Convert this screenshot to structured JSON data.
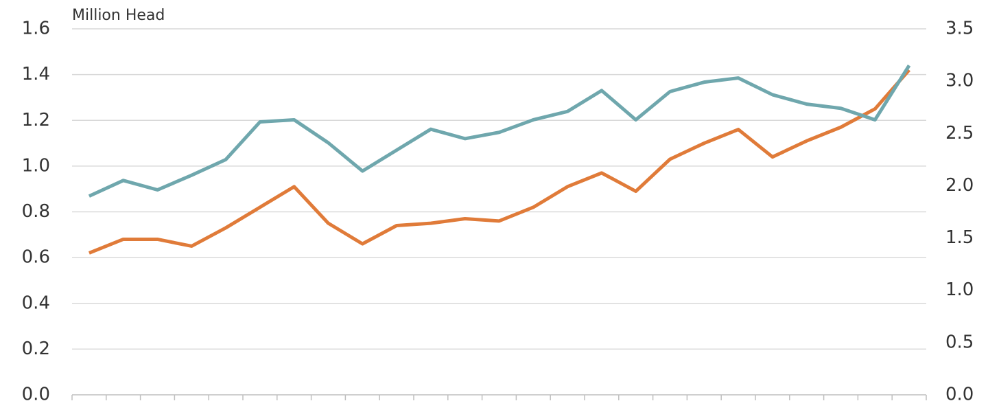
{
  "chart_data": {
    "type": "line",
    "y_label": "Million Head",
    "categories": [
      null,
      null,
      null,
      null,
      null,
      null,
      null,
      null,
      null,
      null,
      null,
      null,
      null,
      null,
      null,
      null,
      null,
      null,
      null,
      null,
      null,
      null,
      null,
      null,
      null
    ],
    "series": [
      {
        "color": "#e07b39",
        "values": [
          0.62,
          0.68,
          0.68,
          0.65,
          0.73,
          0.82,
          0.91,
          0.75,
          0.66,
          0.74,
          0.75,
          0.77,
          0.76,
          0.82,
          0.91,
          0.97,
          0.89,
          1.03,
          1.1,
          1.16,
          1.04,
          1.11,
          1.17,
          1.25,
          1.42
        ]
      },
      {
        "color": "#6fa7ad",
        "axis": "y2",
        "values": [
          1.9,
          2.05,
          1.96,
          2.1,
          2.25,
          2.61,
          2.63,
          2.41,
          2.14,
          2.34,
          2.54,
          2.45,
          2.51,
          2.63,
          2.71,
          2.91,
          2.63,
          2.9,
          2.99,
          3.03,
          2.87,
          2.78,
          2.74,
          2.63,
          3.15
        ]
      }
    ],
    "ylim": [
      0,
      1.6
    ],
    "yticks": [
      {
        "value": 0,
        "label": "0.0"
      },
      0.2,
      0.4,
      0.6,
      0.8,
      {
        "value": 1,
        "label": "1.0"
      },
      1.2,
      1.4,
      1.6
    ],
    "y2lim": [
      0,
      3.5
    ],
    "y2ticks": [
      {
        "value": 0,
        "label": "0.0"
      },
      0.5,
      {
        "value": 1,
        "label": "1.0"
      },
      1.5,
      {
        "value": 2,
        "label": "2.0"
      },
      2.5,
      {
        "value": 3,
        "label": "3.0"
      },
      3.5
    ],
    "grid": true
  }
}
